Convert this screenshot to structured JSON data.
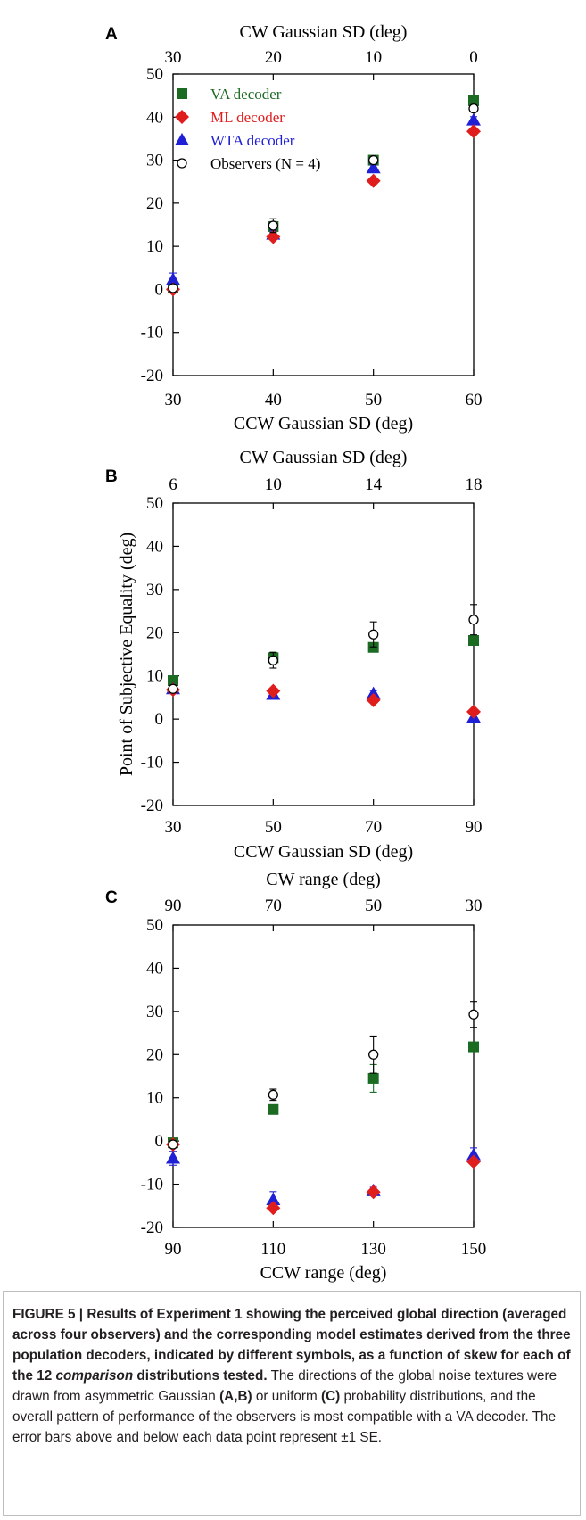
{
  "legend_entries": [
    {
      "label": "VA decoder",
      "color": "#1b6b23",
      "marker": "square"
    },
    {
      "label": "ML decoder",
      "color": "#e01d1d",
      "marker": "diamond"
    },
    {
      "label": "WTA decoder",
      "color": "#1f1fd6",
      "marker": "triangle"
    },
    {
      "label": "Observers (N = 4)",
      "color": "#000000",
      "marker": "open-circle"
    }
  ],
  "chart_data": [
    {
      "panel": "A",
      "type": "scatter",
      "xlabel": "CCW Gaussian SD (deg)",
      "x_top_label": "CW Gaussian SD (deg)",
      "ylabel": "",
      "x_ticks": [
        30,
        40,
        50,
        60
      ],
      "x_top_ticks": [
        "30",
        "20",
        "10",
        "0"
      ],
      "y_ticks": [
        50,
        40,
        30,
        20,
        10,
        0,
        -10,
        -20
      ],
      "xlim": [
        30,
        60
      ],
      "ylim": [
        -20,
        50
      ],
      "legend": "top-left",
      "x": [
        30,
        40,
        50,
        60
      ],
      "series": [
        {
          "name": "VA decoder",
          "values": [
            0.3,
            14.6,
            30.0,
            43.8
          ],
          "err": [
            0,
            0,
            0,
            0
          ]
        },
        {
          "name": "ML decoder",
          "values": [
            0.0,
            12.2,
            25.2,
            36.7
          ],
          "err": [
            0,
            0,
            0,
            0
          ]
        },
        {
          "name": "WTA decoder",
          "values": [
            2.3,
            12.8,
            28.2,
            39.3
          ],
          "err": [
            1.5,
            0.8,
            0.8,
            0.8
          ]
        },
        {
          "name": "Observers (N = 4)",
          "values": [
            0.3,
            14.8,
            30.0,
            42.0
          ],
          "err": [
            0.5,
            1.6,
            0.6,
            0.8
          ]
        }
      ]
    },
    {
      "panel": "B",
      "type": "scatter",
      "xlabel": "CCW Gaussian SD (deg)",
      "x_top_label": "CW Gaussian SD (deg)",
      "ylabel": "Point of Subjective Equality (deg)",
      "x_ticks": [
        30,
        50,
        70,
        90
      ],
      "x_top_ticks": [
        "6",
        "10",
        "14",
        "18"
      ],
      "y_ticks": [
        50,
        40,
        30,
        20,
        10,
        0,
        -10,
        -20
      ],
      "xlim": [
        30,
        90
      ],
      "ylim": [
        -20,
        50
      ],
      "x": [
        30,
        50,
        70,
        90
      ],
      "series": [
        {
          "name": "VA decoder",
          "values": [
            8.9,
            14.2,
            16.6,
            18.2
          ],
          "err": [
            0,
            1.3,
            0,
            0
          ]
        },
        {
          "name": "ML decoder",
          "values": [
            6.8,
            6.5,
            4.4,
            1.7
          ],
          "err": [
            0,
            0,
            0,
            0
          ]
        },
        {
          "name": "WTA decoder",
          "values": [
            7.0,
            5.7,
            5.9,
            0.4
          ],
          "err": [
            0,
            0,
            0.7,
            0
          ]
        },
        {
          "name": "Observers (N = 4)",
          "values": [
            7.0,
            13.6,
            19.6,
            23.0
          ],
          "err": [
            0.6,
            1.8,
            2.9,
            3.5
          ]
        }
      ]
    },
    {
      "panel": "C",
      "type": "scatter",
      "xlabel": "CCW range (deg)",
      "x_top_label": "CW range (deg)",
      "ylabel": "",
      "x_ticks": [
        90,
        110,
        130,
        150
      ],
      "x_top_ticks": [
        "90",
        "70",
        "50",
        "30"
      ],
      "y_ticks": [
        50,
        40,
        30,
        20,
        10,
        0,
        -10,
        -20
      ],
      "xlim": [
        90,
        150
      ],
      "ylim": [
        -20,
        50
      ],
      "x": [
        90,
        110,
        130,
        150
      ],
      "series": [
        {
          "name": "VA decoder",
          "values": [
            -0.4,
            7.3,
            14.5,
            21.8
          ],
          "err": [
            0,
            0,
            3.2,
            0
          ]
        },
        {
          "name": "ML decoder",
          "values": [
            -0.8,
            -15.5,
            -11.8,
            -4.8
          ],
          "err": [
            0,
            0,
            0,
            0
          ]
        },
        {
          "name": "WTA decoder",
          "values": [
            -4.0,
            -13.6,
            -11.5,
            -3.2
          ],
          "err": [
            1.6,
            1.9,
            0.8,
            1.6
          ]
        },
        {
          "name": "Observers (N = 4)",
          "values": [
            -0.8,
            10.7,
            20.0,
            29.3
          ],
          "err": [
            0.5,
            1.3,
            4.3,
            3.0
          ]
        }
      ]
    }
  ],
  "caption": {
    "lead": "FIGURE 5 | Results of Experiment 1 showing the perceived global direction (averaged across four observers) and the corresponding model estimates derived from the three population decoders, indicated by different symbols, as a function of skew for each of the 12 ",
    "lead_italic": "comparison",
    "lead_tail": " distributions tested.",
    "body_1": " The directions of the global noise textures were drawn from asymmetric Gaussian ",
    "ref_ab": "(A,B)",
    "body_2": " or uniform ",
    "ref_c": "(C)",
    "body_3": " probability distributions, and the overall pattern of performance of the observers is most compatible with a VA decoder. The error bars above and below each data point represent ±1 SE."
  }
}
